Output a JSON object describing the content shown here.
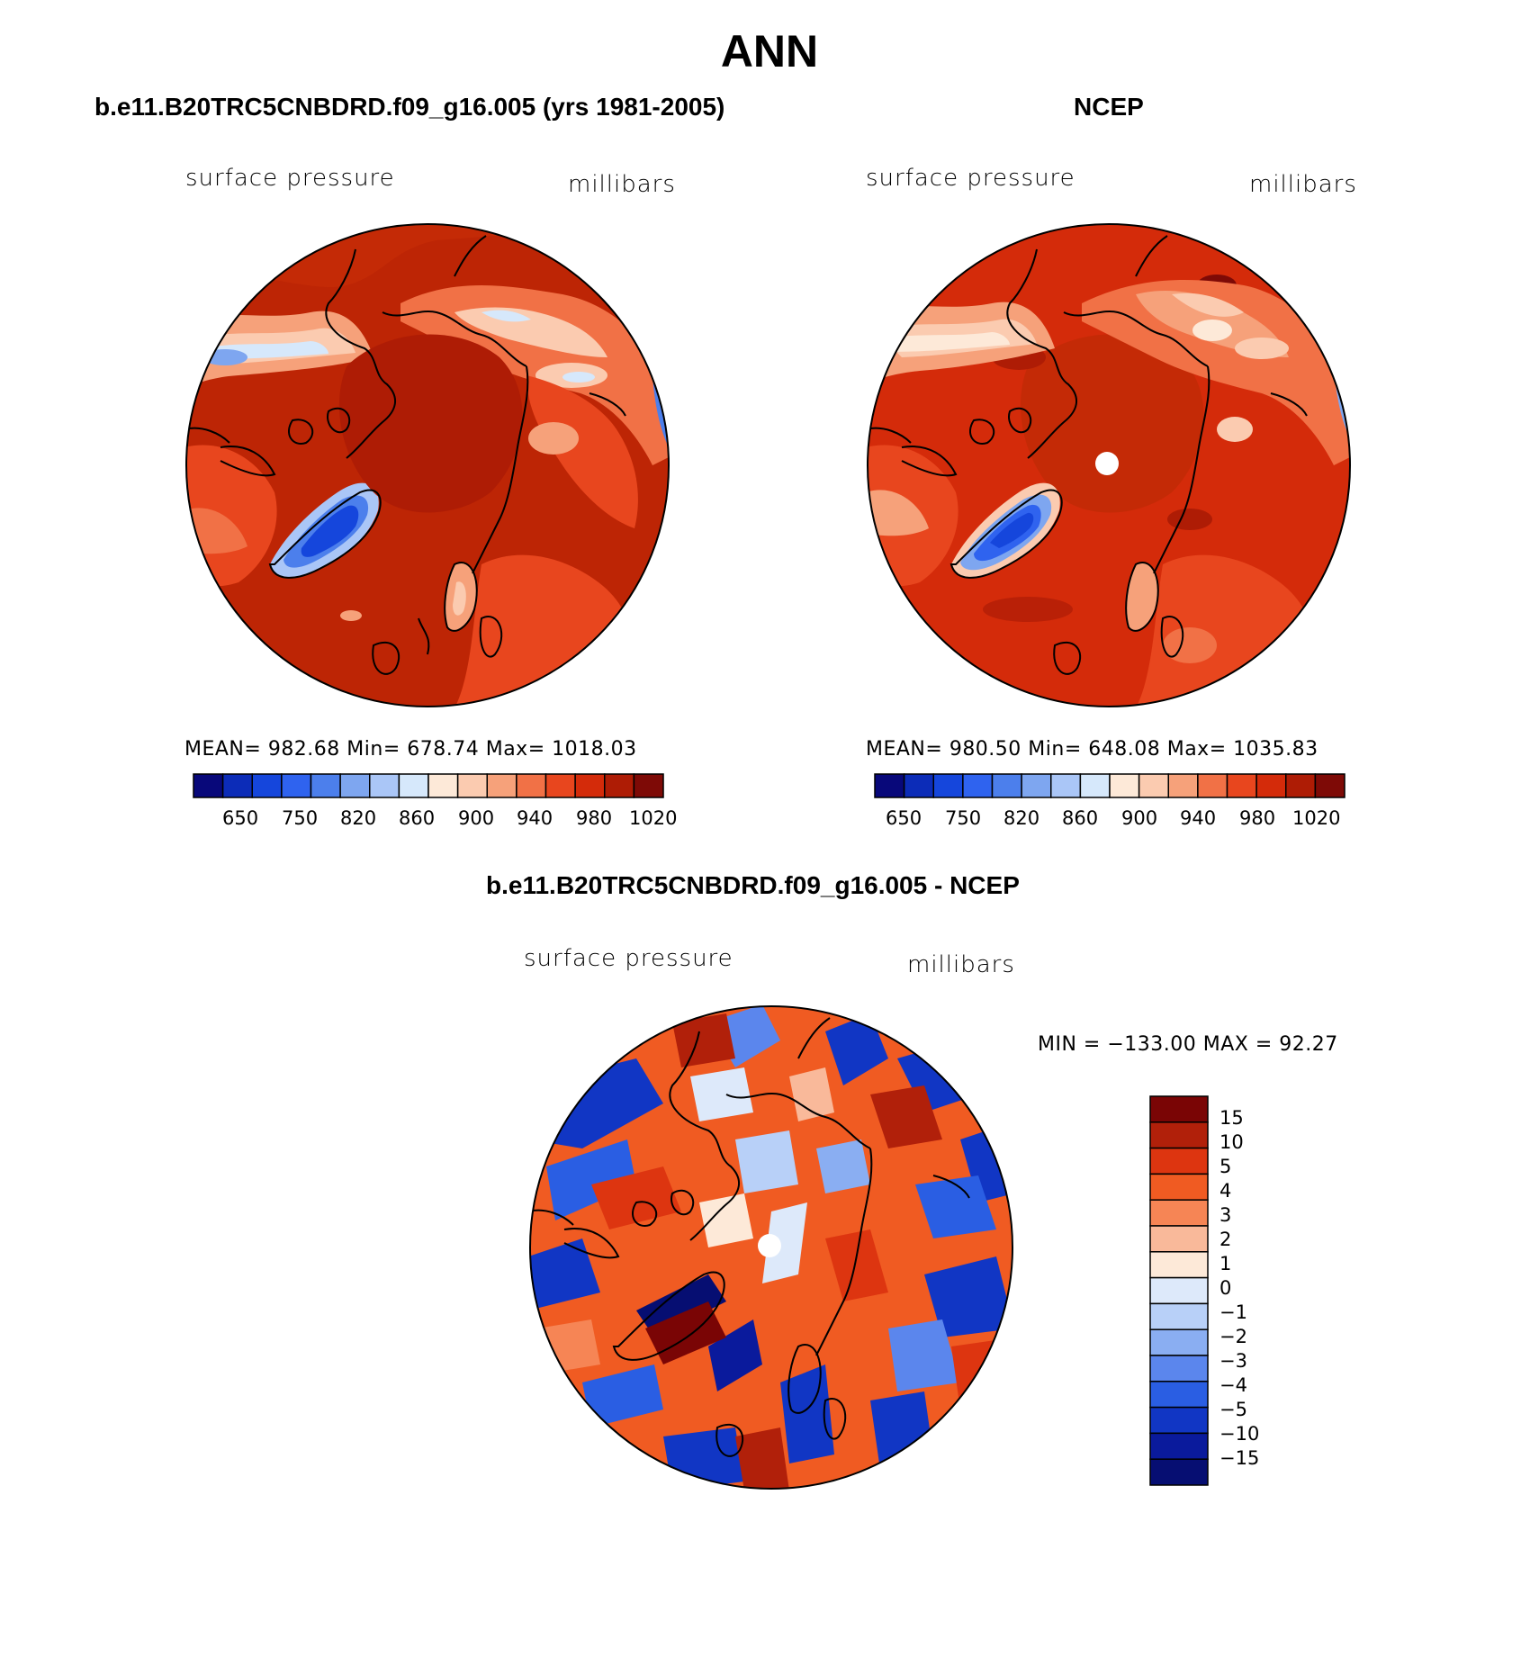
{
  "title": "ANN",
  "colors": {
    "abs_scale": [
      "#08087a",
      "#0c2cb8",
      "#1546dc",
      "#2f63ef",
      "#4c7fec",
      "#7ea6f0",
      "#aac6f7",
      "#d6e8fb",
      "#fde9d8",
      "#fbcbb0",
      "#f6a17a",
      "#f17146",
      "#e8461e",
      "#d42b0a",
      "#ae1c05",
      "#7e0a06"
    ],
    "diff_scale": [
      "#7a0505",
      "#b1200a",
      "#dd3510",
      "#f05b22",
      "#f68555",
      "#f9b99a",
      "#fde9d8",
      "#dde9fa",
      "#b8d0f8",
      "#8aaef2",
      "#5b86ed",
      "#2a5ee3",
      "#1136c4",
      "#0a1a9c",
      "#060e72"
    ],
    "background": "#ffffff"
  },
  "panels": {
    "model": {
      "title": "b.e11.B20TRC5CNBDRD.f09_g16.005 (yrs 1981-2005)",
      "field": "surface pressure",
      "units": "millibars",
      "stats": "MEAN= 982.68   Min= 678.74   Max= 1018.03",
      "colorbar_labels": [
        "650",
        "750",
        "820",
        "860",
        "900",
        "940",
        "980",
        "1020"
      ]
    },
    "obs": {
      "title": "NCEP",
      "field": "surface pressure",
      "units": "millibars",
      "stats": "MEAN= 980.50   Min= 648.08   Max= 1035.83",
      "colorbar_labels": [
        "650",
        "750",
        "820",
        "860",
        "900",
        "940",
        "980",
        "1020"
      ]
    },
    "diff": {
      "title": "b.e11.B20TRC5CNBDRD.f09_g16.005 - NCEP",
      "field": "surface pressure",
      "units": "millibars",
      "stats": "MIN = −133.00 MAX =   92.27",
      "colorbar_labels": [
        "15",
        "10",
        "5",
        "4",
        "3",
        "2",
        "1",
        "0",
        "−1",
        "−2",
        "−3",
        "−4",
        "−5",
        "−10",
        "−15"
      ]
    }
  }
}
